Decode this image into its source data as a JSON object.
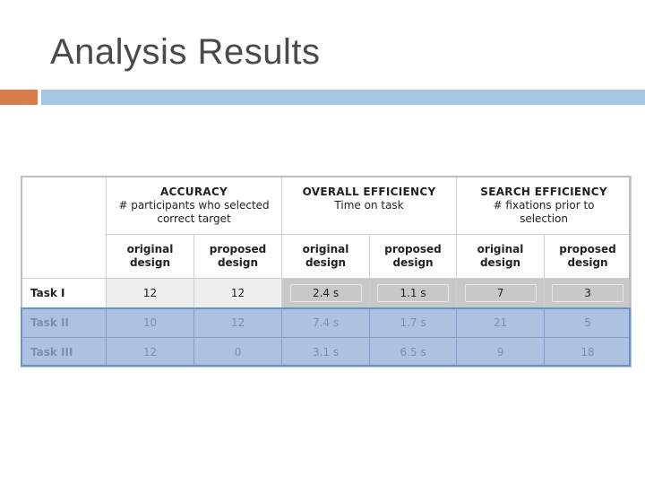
{
  "slide": {
    "title": "Analysis Results",
    "accent_color": "#d97d4c",
    "bar_color": "#a9c5e6"
  },
  "table": {
    "groups": [
      {
        "title": "ACCURACY",
        "sub1": "# participants who selected",
        "sub2": "correct target"
      },
      {
        "title": "OVERALL EFFICIENCY",
        "sub1": "Time on task",
        "sub2": ""
      },
      {
        "title": "SEARCH EFFICIENCY",
        "sub1": "# fixations prior to",
        "sub2": "selection"
      }
    ],
    "subheaders": [
      {
        "l1": "original",
        "l2": "design"
      },
      {
        "l1": "proposed",
        "l2": "design"
      },
      {
        "l1": "original",
        "l2": "design"
      },
      {
        "l1": "proposed",
        "l2": "design"
      },
      {
        "l1": "original",
        "l2": "design"
      },
      {
        "l1": "proposed",
        "l2": "design"
      }
    ],
    "rows": [
      {
        "label": "Task I",
        "values": [
          "12",
          "12",
          "2.4 s",
          "1.1 s",
          "7",
          "3"
        ]
      },
      {
        "label": "Task II",
        "values": [
          "10",
          "12",
          "7.4 s",
          "1.7 s",
          "21",
          "5"
        ]
      },
      {
        "label": "Task III",
        "values": [
          "12",
          "0",
          "3.1 s",
          "6.5 s",
          "9",
          "18"
        ]
      }
    ],
    "highlight_color": "#5280be"
  }
}
